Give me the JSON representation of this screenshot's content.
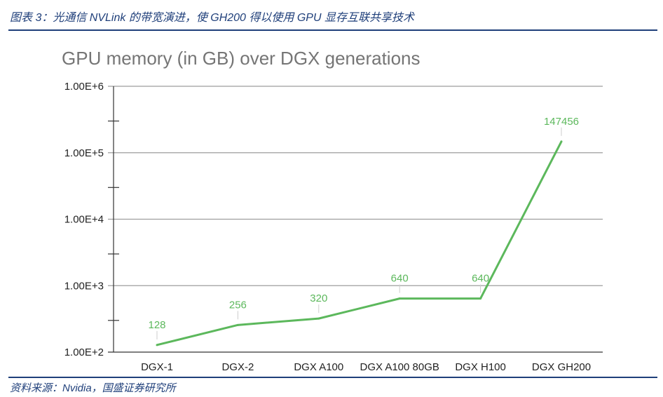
{
  "figure": {
    "caption": "图表 3：光通信 NVLink 的带宽演进，使 GH200 得以使用 GPU 显存互联共享技术",
    "source": "资料来源：Nvidia，国盛证券研究所"
  },
  "colors": {
    "accent": "#1f3f7a",
    "line": "#5cb85c",
    "label": "#5cb85c",
    "grid": "#9e9e9e",
    "title": "#757575"
  },
  "chart_data": {
    "type": "line",
    "title": "GPU memory (in GB) over DGX generations",
    "xlabel": "",
    "ylabel": "",
    "yscale": "log",
    "ylim": [
      100,
      1000000
    ],
    "yticks": [
      {
        "value": 100,
        "label": "1.00E+2"
      },
      {
        "value": 1000,
        "label": "1.00E+3"
      },
      {
        "value": 10000,
        "label": "1.00E+4"
      },
      {
        "value": 100000,
        "label": "1.00E+5"
      },
      {
        "value": 1000000,
        "label": "1.00E+6"
      }
    ],
    "categories": [
      "DGX-1",
      "DGX-2",
      "DGX A100",
      "DGX A100 80GB",
      "DGX H100",
      "DGX GH200"
    ],
    "series": [
      {
        "values": [
          128,
          256,
          320,
          640,
          640,
          147456
        ]
      }
    ],
    "data_labels": [
      "128",
      "256",
      "320",
      "640",
      "640",
      "147456"
    ],
    "grid": true,
    "legend": "none"
  }
}
